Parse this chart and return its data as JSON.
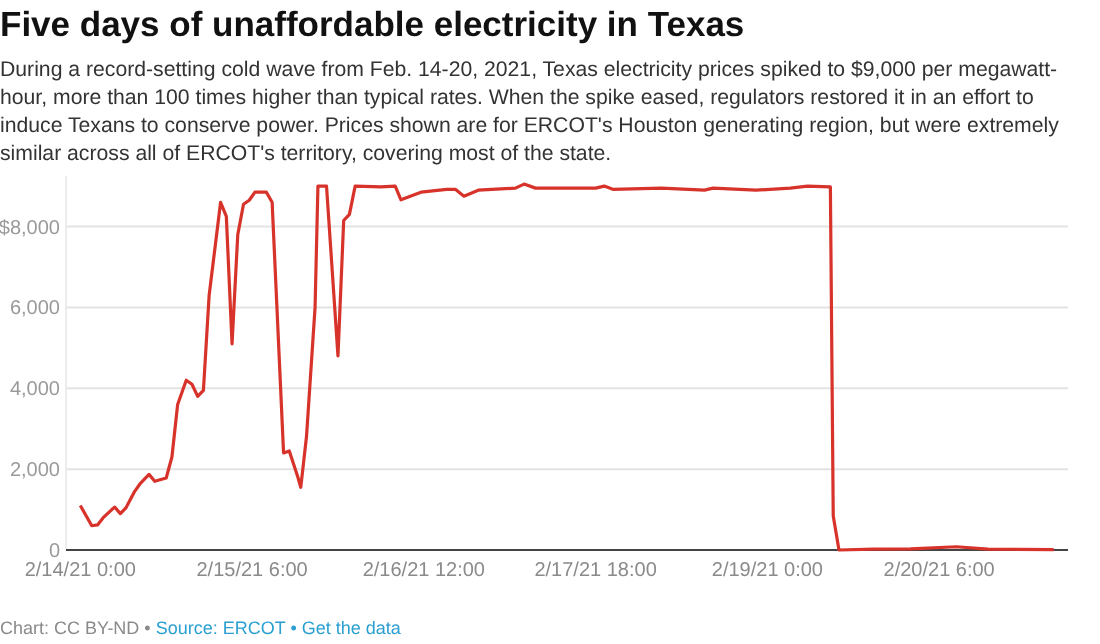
{
  "chart_data": {
    "type": "line",
    "title": "Five days of unaffordable electricity in Texas",
    "subtitle": "During a record-setting cold wave from Feb. 14-20, 2021, Texas electricity prices spiked to $9,000 per megawatt-hour, more than 100 times higher than typical rates. When the spike eased, regulators restored it in an effort to induce Texans to conserve power. Prices shown are for ERCOT's Houston generating region, but were extremely similar across all of ERCOT's territory, covering most of the state.",
    "annotations": [
      "Chart: CC BY-ND •",
      "Source: ERCOT •",
      "Get the data"
    ],
    "series": [
      {
        "color": "#d7332a",
        "x": [
          "2021-02-14T00:00",
          "2021-02-14T02:00",
          "2021-02-14T03:00",
          "2021-02-14T04:00",
          "2021-02-14T05:30",
          "2021-02-14T06:00",
          "2021-02-14T07:00",
          "2021-02-14T08:00",
          "2021-02-14T09:30",
          "2021-02-14T10:30",
          "2021-02-14T12:00",
          "2021-02-14T13:00",
          "2021-02-14T15:00",
          "2021-02-14T16:00",
          "2021-02-14T17:00",
          "2021-02-14T18:30",
          "2021-02-14T19:30",
          "2021-02-14T20:30",
          "2021-02-14T21:30",
          "2021-02-14T22:30",
          "2021-02-15T00:30",
          "2021-02-15T01:30",
          "2021-02-15T02:30",
          "2021-02-15T03:30",
          "2021-02-15T04:30",
          "2021-02-15T05:30",
          "2021-02-15T06:30",
          "2021-02-15T08:30",
          "2021-02-15T09:30",
          "2021-02-15T11:30",
          "2021-02-15T12:30",
          "2021-02-15T14:00",
          "2021-02-15T14:30",
          "2021-02-15T15:30",
          "2021-02-15T17:00",
          "2021-02-15T17:30",
          "2021-02-15T19:00",
          "2021-02-15T21:00",
          "2021-02-15T22:00",
          "2021-02-15T23:00",
          "2021-02-16T00:00",
          "2021-02-16T04:30",
          "2021-02-16T07:00",
          "2021-02-16T08:00",
          "2021-02-16T11:30",
          "2021-02-16T16:00",
          "2021-02-16T17:30",
          "2021-02-16T19:00",
          "2021-02-16T21:30",
          "2021-02-17T04:00",
          "2021-02-17T05:30",
          "2021-02-17T07:30",
          "2021-02-17T18:00",
          "2021-02-17T19:30",
          "2021-02-17T21:00",
          "2021-02-18T05:30",
          "2021-02-18T13:00",
          "2021-02-18T14:30",
          "2021-02-18T22:00",
          "2021-02-19T04:00",
          "2021-02-19T07:00",
          "2021-02-19T11:00",
          "2021-02-19T11:30",
          "2021-02-19T12:30",
          "2021-02-19T18:30",
          "2021-02-20T01:00",
          "2021-02-20T09:00",
          "2021-02-20T14:30",
          "2021-02-21T02:00"
        ],
        "values": [
          1100,
          600,
          620,
          800,
          1000,
          1060,
          900,
          1050,
          1450,
          1650,
          1870,
          1700,
          1780,
          2300,
          3600,
          4200,
          4100,
          3800,
          3950,
          6300,
          8600,
          8250,
          5100,
          7800,
          8550,
          8650,
          8850,
          8850,
          8600,
          2400,
          2450,
          1800,
          1550,
          2800,
          6000,
          9000,
          9000,
          4800,
          8150,
          8300,
          9000,
          8980,
          9000,
          8660,
          8850,
          8920,
          8920,
          8750,
          8900,
          8950,
          9050,
          8950,
          8950,
          9000,
          8920,
          8950,
          8900,
          8950,
          8900,
          8950,
          9000,
          8980,
          840,
          0,
          20,
          30,
          80,
          20,
          10
        ]
      }
    ],
    "xlim": [
      "2021-02-13T21:30",
      "2021-02-21T04:30"
    ],
    "xticks": [
      {
        "value": "2021-02-14T00:00",
        "label": "2/14/21 0:00"
      },
      {
        "value": "2021-02-15T06:00",
        "label": "2/15/21 6:00"
      },
      {
        "value": "2021-02-16T12:00",
        "label": "2/16/21 12:00"
      },
      {
        "value": "2021-02-17T18:00",
        "label": "2/17/21 18:00"
      },
      {
        "value": "2021-02-19T00:00",
        "label": "2/19/21 0:00"
      },
      {
        "value": "2021-02-20T06:00",
        "label": "2/20/21 6:00"
      }
    ],
    "ylim": [
      0,
      9250
    ],
    "yticks": [
      0,
      {
        "value": 2000,
        "label": "2,000"
      },
      {
        "value": 4000,
        "label": "4,000"
      },
      {
        "value": 6000,
        "label": "6,000"
      },
      {
        "value": 8000,
        "label": "$8,000"
      }
    ],
    "grid": "y",
    "marker": "none",
    "line_style": "solid"
  }
}
